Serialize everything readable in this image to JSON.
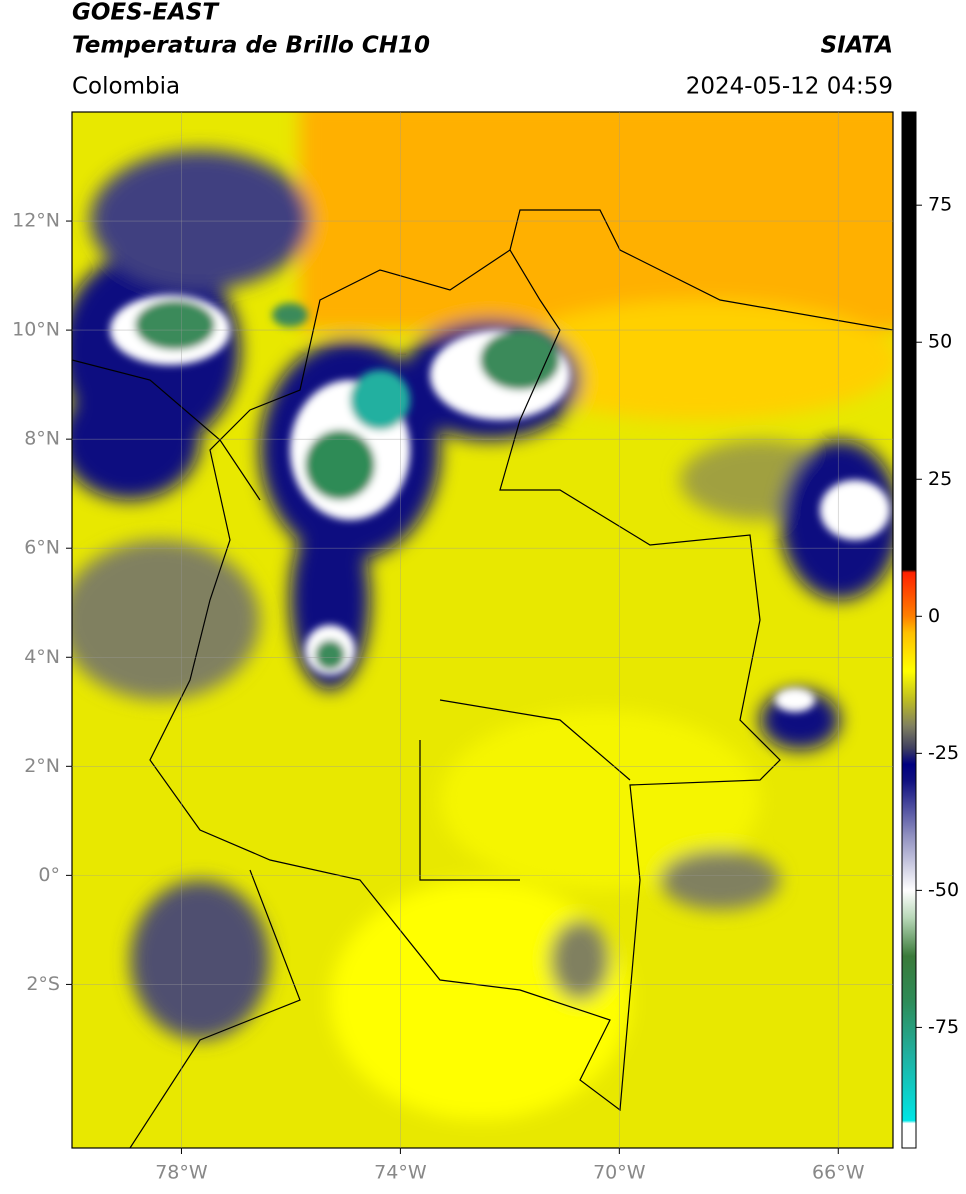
{
  "header": {
    "title": "GOES-EAST",
    "subtitle": "Temperatura de Brillo CH10",
    "source": "SIATA",
    "region": "Colombia",
    "datetime": "2024-05-12 04:59"
  },
  "map": {
    "xlim": [
      -80,
      -65
    ],
    "ylim": [
      -5,
      14
    ],
    "xticks": [
      {
        "value": -78,
        "label": "78°W"
      },
      {
        "value": -74,
        "label": "74°W"
      },
      {
        "value": -70,
        "label": "70°W"
      },
      {
        "value": -66,
        "label": "66°W"
      }
    ],
    "yticks": [
      {
        "value": 12,
        "label": "12°N"
      },
      {
        "value": 10,
        "label": "10°N"
      },
      {
        "value": 8,
        "label": "8°N"
      },
      {
        "value": 6,
        "label": "6°N"
      },
      {
        "value": 4,
        "label": "4°N"
      },
      {
        "value": 2,
        "label": "2°N"
      },
      {
        "value": 0,
        "label": "0°"
      },
      {
        "value": -2,
        "label": "2°S"
      }
    ],
    "grid": true
  },
  "colorbar": {
    "lim": [
      -97,
      92
    ],
    "ticks": [
      75,
      50,
      25,
      0,
      -25,
      -50,
      -75
    ],
    "stops": [
      {
        "value": -97,
        "color": "#ffffff"
      },
      {
        "value": -92.5,
        "color": "#ffffff"
      },
      {
        "value": -92,
        "color": "#00e5e5"
      },
      {
        "value": -80,
        "color": "#20b0a0"
      },
      {
        "value": -70,
        "color": "#2e8b57"
      },
      {
        "value": -62,
        "color": "#3a7a3a"
      },
      {
        "value": -55,
        "color": "#b8d8b8"
      },
      {
        "value": -50,
        "color": "#ffffff"
      },
      {
        "value": -40,
        "color": "#9090c0"
      },
      {
        "value": -30,
        "color": "#101080"
      },
      {
        "value": -27,
        "color": "#000080"
      },
      {
        "value": -24,
        "color": "#404060"
      },
      {
        "value": -20,
        "color": "#808060"
      },
      {
        "value": -15,
        "color": "#c0c020"
      },
      {
        "value": -10,
        "color": "#ffff00"
      },
      {
        "value": -3,
        "color": "#ffc000"
      },
      {
        "value": 0,
        "color": "#ff8000"
      },
      {
        "value": 8,
        "color": "#ff2000"
      },
      {
        "value": 8.5,
        "color": "#000000"
      },
      {
        "value": 92,
        "color": "#000000"
      }
    ]
  }
}
